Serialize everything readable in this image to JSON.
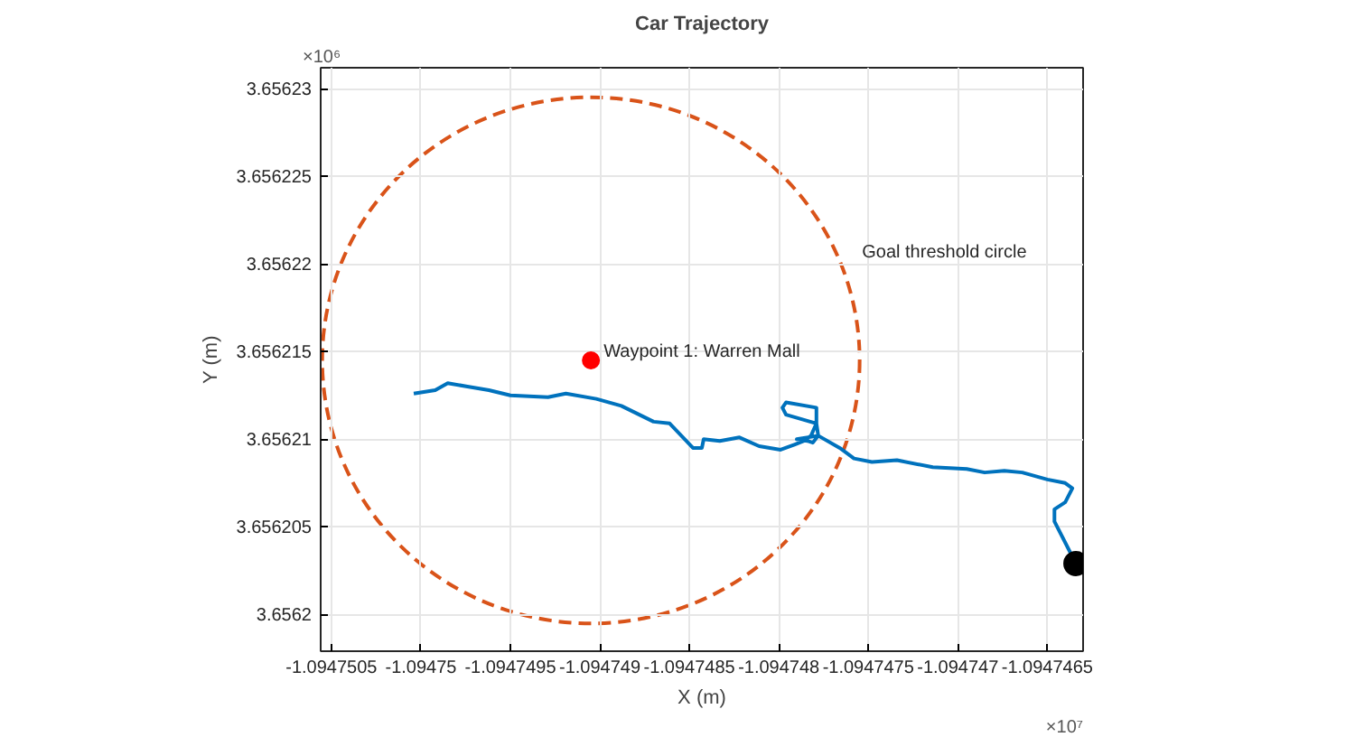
{
  "chart_data": {
    "type": "line",
    "title": "Car Trajectory",
    "xlabel": "X (m)",
    "ylabel": "Y (m)",
    "xlim": [
      -1.09475056,
      -1.0947463
    ],
    "ylim": [
      3.6561979,
      3.6562312
    ],
    "xticks": [
      -1.0947505,
      -1.09475,
      -1.0947495,
      -1.094749,
      -1.0947485,
      -1.094748,
      -1.0947475,
      -1.094747,
      -1.0947465
    ],
    "yticks": [
      3.6562,
      3.656205,
      3.65621,
      3.656215,
      3.65622,
      3.656225,
      3.65623
    ],
    "grid": true,
    "series": [
      {
        "color": "#0072bd",
        "line_style": "solid",
        "x": [
          -1.09475004,
          -1.09474992,
          -1.09474985,
          -1.09474974,
          -1.09474962,
          -1.0947495,
          -1.09474929,
          -1.09474919,
          -1.09474902,
          -1.09474888,
          -1.0947487,
          -1.09474861,
          -1.09474848,
          -1.09474843,
          -1.09474842,
          -1.09474833,
          -1.09474822,
          -1.09474811,
          -1.09474799,
          -1.09474791,
          -1.09474786,
          -1.09474782,
          -1.09474779,
          -1.09474779,
          -1.09474796,
          -1.09474798,
          -1.09474796,
          -1.09474779,
          -1.09474778,
          -1.09474781,
          -1.09474784,
          -1.0947479,
          -1.09474778,
          -1.09474766,
          -1.09474758,
          -1.09474748,
          -1.09474734,
          -1.09474714,
          -1.09474695,
          -1.09474685,
          -1.09474674,
          -1.09474664,
          -1.0947465,
          -1.0947464,
          -1.09474636,
          -1.0947464,
          -1.09474646,
          -1.09474646,
          -1.09474634
        ],
        "values": [
          3.6562126,
          3.6562128,
          3.6562132,
          3.656213,
          3.6562128,
          3.6562125,
          3.6562124,
          3.6562126,
          3.6562123,
          3.6562119,
          3.656211,
          3.6562109,
          3.6562095,
          3.6562095,
          3.65621,
          3.6562099,
          3.6562101,
          3.6562096,
          3.6562094,
          3.6562097,
          3.6562099,
          3.6562102,
          3.6562109,
          3.6562118,
          3.6562121,
          3.6562118,
          3.6562114,
          3.6562109,
          3.6562102,
          3.6562098,
          3.6562099,
          3.65621,
          3.6562102,
          3.6562095,
          3.6562089,
          3.6562087,
          3.6562088,
          3.6562084,
          3.6562083,
          3.6562081,
          3.6562082,
          3.6562081,
          3.6562077,
          3.6562075,
          3.6562072,
          3.6562064,
          3.656206,
          3.6562053,
          3.6562029
        ]
      },
      {
        "type": "scatter",
        "color": "#ff0000",
        "marker": "circle",
        "x": [
          -1.09474905
        ],
        "values": [
          3.6562145
        ]
      },
      {
        "type": "scatter",
        "color": "#000000",
        "marker": "circle",
        "x": [
          -1.09474634
        ],
        "values": [
          3.6562029
        ]
      }
    ],
    "annotations": [
      {
        "text": "Waypoint 1: Warren Mall",
        "x": -1.09474905,
        "y": 3.6562145
      },
      "Goal threshold circle",
      "×10⁷",
      "×10⁶"
    ]
  }
}
